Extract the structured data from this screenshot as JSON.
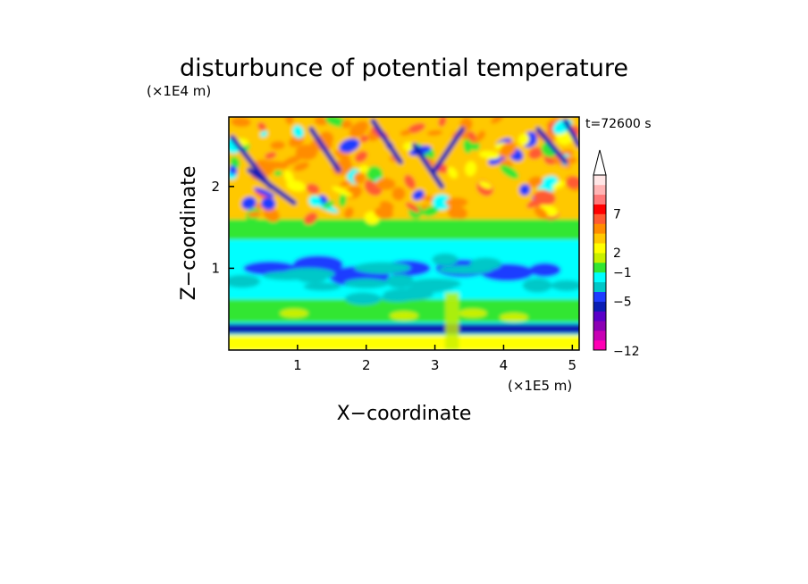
{
  "chart_data": {
    "type": "heatmap",
    "title": "disturbunce of potential temperature",
    "xlabel": "X−coordinate",
    "ylabel": "Z−coordinate",
    "x_unit": "(×1E5 m)",
    "y_unit": "(×1E4 m)",
    "time_label": "t=72600 s",
    "xlim": [
      0,
      5.1
    ],
    "ylim": [
      0,
      2.85
    ],
    "x_ticks": [
      1,
      2,
      3,
      4,
      5
    ],
    "y_ticks": [
      1,
      2
    ],
    "colorbar": {
      "levels": [
        -12,
        -5,
        -1,
        2,
        7
      ],
      "level_labels": [
        "−12",
        "−5",
        "−1",
        "2",
        "7"
      ],
      "colors": [
        "#ff00b4",
        "#c800b4",
        "#8c00b4",
        "#5a00c8",
        "#0a1eb4",
        "#1e3cff",
        "#00c8c8",
        "#00ffff",
        "#32e632",
        "#c8f000",
        "#ffff00",
        "#ffc800",
        "#ff8c00",
        "#ff5a32",
        "#ff0000",
        "#ff7878",
        "#ffb4b4",
        "#ffe6e6"
      ]
    },
    "layers": [
      {
        "z_range": [
          0.0,
          0.08
        ],
        "value_range": "yellow / green"
      },
      {
        "z_range": [
          0.18,
          0.34
        ],
        "value_range": "dark blue (about −5)"
      },
      {
        "z_range": [
          0.34,
          0.62
        ],
        "value_range": "green / yellow (about 2)"
      },
      {
        "z_range": [
          0.62,
          1.35
        ],
        "value_range": "cyan with blue patches (about −1 to −5)"
      },
      {
        "z_range": [
          1.35,
          1.6
        ],
        "value_range": "green (about 0 to 2)"
      },
      {
        "z_range": [
          1.6,
          2.85
        ],
        "value_range": "orange / red with blue bands (about 2 to 7)"
      }
    ]
  }
}
